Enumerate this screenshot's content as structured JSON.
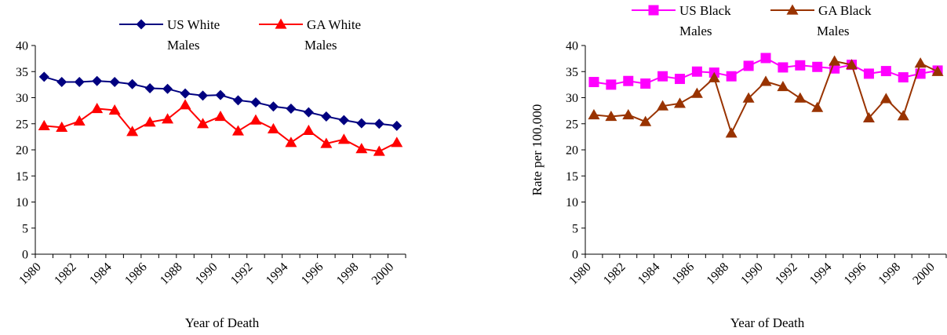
{
  "chart_data": [
    {
      "type": "line",
      "title": "",
      "xlabel": "Year of Death",
      "ylabel": "",
      "ylim": [
        0,
        40
      ],
      "yticks": [
        0,
        5,
        10,
        15,
        20,
        25,
        30,
        35,
        40
      ],
      "x": [
        1980,
        1981,
        1982,
        1983,
        1984,
        1985,
        1986,
        1987,
        1988,
        1989,
        1990,
        1991,
        1992,
        1993,
        1994,
        1995,
        1996,
        1997,
        1998,
        1999,
        2000
      ],
      "xtick_labels": [
        "1980",
        "1982",
        "1984",
        "1986",
        "1988",
        "1990",
        "1992",
        "1994",
        "1996",
        "1998",
        "2000"
      ],
      "legend_position": "top",
      "grid": false,
      "series": [
        {
          "name_lines": [
            "US White",
            "Males"
          ],
          "color": "#000080",
          "marker": "diamond",
          "values": [
            34.0,
            33.0,
            33.0,
            33.2,
            33.0,
            32.6,
            31.8,
            31.7,
            30.8,
            30.4,
            30.5,
            29.5,
            29.1,
            28.3,
            27.9,
            27.2,
            26.4,
            25.7,
            25.1,
            25.0,
            24.6
          ]
        },
        {
          "name_lines": [
            "GA White",
            "Males"
          ],
          "color": "#ff0000",
          "marker": "triangle",
          "values": [
            24.6,
            24.3,
            25.5,
            27.9,
            27.6,
            23.5,
            25.3,
            25.9,
            28.6,
            25.0,
            26.4,
            23.6,
            25.7,
            24.0,
            21.4,
            23.7,
            21.2,
            22.0,
            20.2,
            19.7,
            21.4
          ]
        }
      ]
    },
    {
      "type": "line",
      "title": "",
      "xlabel": "Year of Death",
      "ylabel": "Rate per 100,000",
      "ylim": [
        0,
        40
      ],
      "yticks": [
        0,
        5,
        10,
        15,
        20,
        25,
        30,
        35,
        40
      ],
      "x": [
        1980,
        1981,
        1982,
        1983,
        1984,
        1985,
        1986,
        1987,
        1988,
        1989,
        1990,
        1991,
        1992,
        1993,
        1994,
        1995,
        1996,
        1997,
        1998,
        1999,
        2000
      ],
      "xtick_labels": [
        "1980",
        "1982",
        "1984",
        "1986",
        "1988",
        "1990",
        "1992",
        "1994",
        "1996",
        "1998",
        "2000"
      ],
      "legend_position": "top",
      "grid": false,
      "series": [
        {
          "name_lines": [
            "US Black",
            "Males"
          ],
          "color": "#ff00ff",
          "marker": "square",
          "values": [
            33.0,
            32.5,
            33.2,
            32.7,
            34.1,
            33.6,
            35.0,
            34.8,
            34.1,
            36.1,
            37.6,
            35.8,
            36.2,
            35.9,
            35.6,
            36.3,
            34.6,
            35.1,
            33.9,
            34.6,
            35.2
          ]
        },
        {
          "name_lines": [
            "GA Black",
            "Males"
          ],
          "color": "#993300",
          "marker": "triangle",
          "values": [
            26.7,
            26.4,
            26.7,
            25.4,
            28.4,
            28.9,
            30.8,
            33.8,
            23.2,
            29.9,
            33.1,
            32.1,
            29.9,
            28.1,
            37.0,
            36.3,
            26.1,
            29.8,
            26.5,
            36.6,
            35.0
          ]
        }
      ]
    }
  ]
}
